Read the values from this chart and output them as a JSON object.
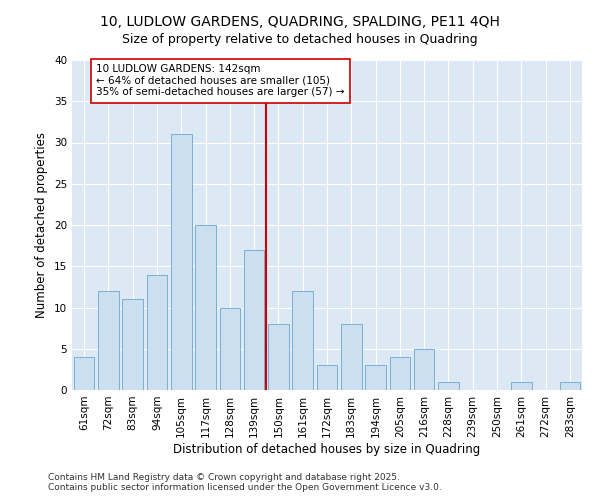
{
  "title": "10, LUDLOW GARDENS, QUADRING, SPALDING, PE11 4QH",
  "subtitle": "Size of property relative to detached houses in Quadring",
  "xlabel": "Distribution of detached houses by size in Quadring",
  "ylabel": "Number of detached properties",
  "bar_labels": [
    "61sqm",
    "72sqm",
    "83sqm",
    "94sqm",
    "105sqm",
    "117sqm",
    "128sqm",
    "139sqm",
    "150sqm",
    "161sqm",
    "172sqm",
    "183sqm",
    "194sqm",
    "205sqm",
    "216sqm",
    "228sqm",
    "239sqm",
    "250sqm",
    "261sqm",
    "272sqm",
    "283sqm"
  ],
  "bar_values": [
    4,
    12,
    11,
    14,
    31,
    20,
    10,
    17,
    8,
    12,
    3,
    8,
    3,
    4,
    5,
    1,
    0,
    0,
    1,
    0,
    1
  ],
  "bar_color": "#ccdff0",
  "bar_edge_color": "#7ab0d4",
  "figure_bg": "#ffffff",
  "axes_bg": "#dce9f5",
  "grid_color": "#ffffff",
  "vline_color": "#cc0000",
  "vline_x_index": 7,
  "annotation_text": "10 LUDLOW GARDENS: 142sqm\n← 64% of detached houses are smaller (105)\n35% of semi-detached houses are larger (57) →",
  "annotation_box_facecolor": "#ffffff",
  "annotation_box_edgecolor": "#cc0000",
  "footer_text": "Contains HM Land Registry data © Crown copyright and database right 2025.\nContains public sector information licensed under the Open Government Licence v3.0.",
  "ylim": [
    0,
    40
  ],
  "yticks": [
    0,
    5,
    10,
    15,
    20,
    25,
    30,
    35,
    40
  ],
  "title_fontsize": 10,
  "subtitle_fontsize": 9,
  "axis_label_fontsize": 8.5,
  "tick_fontsize": 7.5,
  "annotation_fontsize": 7.5,
  "footer_fontsize": 6.5
}
